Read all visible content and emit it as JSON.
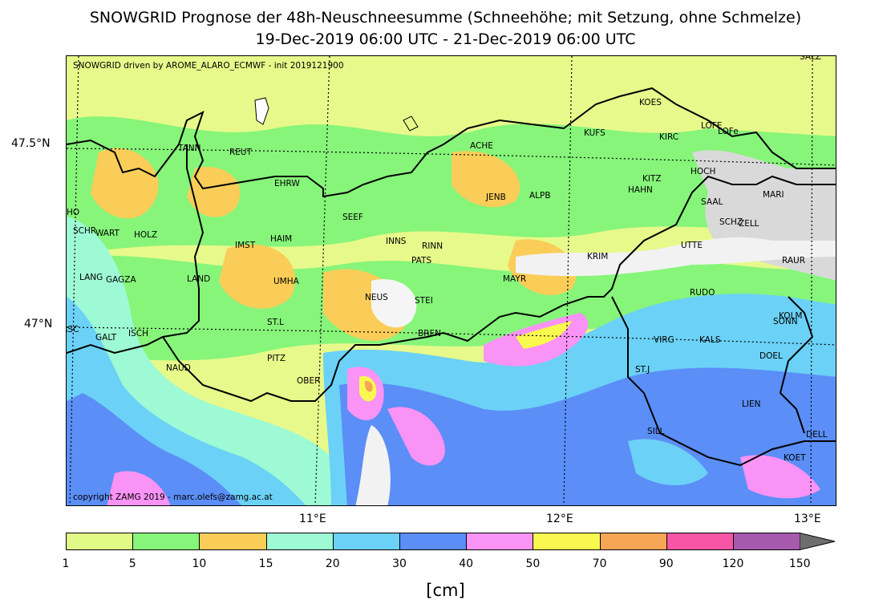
{
  "header": {
    "title_line1": "SNOWGRID Prognose der 48h-Neuschneesumme (Schneehöhe; mit Setzung, ohne Schmelze)",
    "title_line2": "19-Dec-2019 06:00 UTC - 21-Dec-2019 06:00 UTC"
  },
  "map": {
    "driven_by": "SNOWGRID driven by AROME_ALARO_ECMWF - init 2019121900",
    "copyright": "copyright ZAMG 2019 - marc.olefs@zamg.ac.at",
    "lat_labels": [
      "47.5°N",
      "47°N"
    ],
    "lon_labels": [
      "11°E",
      "12°E",
      "13°E"
    ],
    "stations": [
      {
        "name": "SALZ"
      },
      {
        "name": "KOES"
      },
      {
        "name": "LOFE"
      },
      {
        "name": "LOFe"
      },
      {
        "name": "KUFS"
      },
      {
        "name": "KIRC"
      },
      {
        "name": "ACHE"
      },
      {
        "name": "TANN"
      },
      {
        "name": "REUT"
      },
      {
        "name": "HOCH"
      },
      {
        "name": "KITZ"
      },
      {
        "name": "EHRW"
      },
      {
        "name": "HAHN"
      },
      {
        "name": "JENB"
      },
      {
        "name": "ALPB"
      },
      {
        "name": "MARI"
      },
      {
        "name": "SAAL"
      },
      {
        "name": "SCHO"
      },
      {
        "name": "SEEF"
      },
      {
        "name": "SCHZ"
      },
      {
        "name": "ZELL"
      },
      {
        "name": "SCHR"
      },
      {
        "name": "WART"
      },
      {
        "name": "HOLZ"
      },
      {
        "name": "INNS"
      },
      {
        "name": "HAIM"
      },
      {
        "name": "IMST"
      },
      {
        "name": "RINN"
      },
      {
        "name": "UTTE"
      },
      {
        "name": "KRIM"
      },
      {
        "name": "PATS"
      },
      {
        "name": "RAUR"
      },
      {
        "name": "LANG"
      },
      {
        "name": "GAGZA"
      },
      {
        "name": "LAND"
      },
      {
        "name": "UMHA"
      },
      {
        "name": "MAYR"
      },
      {
        "name": "RUDO"
      },
      {
        "name": "NEUS"
      },
      {
        "name": "STEI"
      },
      {
        "name": "KOLM"
      },
      {
        "name": "SONN"
      },
      {
        "name": "ST.L"
      },
      {
        "name": "GASC"
      },
      {
        "name": "BREN"
      },
      {
        "name": "GALT"
      },
      {
        "name": "ISCH"
      },
      {
        "name": "VIRG"
      },
      {
        "name": "KALS"
      },
      {
        "name": "PITZ"
      },
      {
        "name": "DOEL"
      },
      {
        "name": "NAUD"
      },
      {
        "name": "ST.J"
      },
      {
        "name": "OBER"
      },
      {
        "name": "LIEN"
      },
      {
        "name": "SILL"
      },
      {
        "name": "DELL"
      },
      {
        "name": "KOET"
      }
    ]
  },
  "legend": {
    "unit": "[cm]",
    "levels": [
      "1",
      "5",
      "10",
      "15",
      "20",
      "30",
      "40",
      "50",
      "70",
      "90",
      "120",
      "150"
    ],
    "colors": [
      "#e1fa87",
      "#86f57a",
      "#f9cd58",
      "#9dfad4",
      "#6bd1f6",
      "#5b8ef7",
      "#f993f5",
      "#f8f84f",
      "#f5a553",
      "#f955a7",
      "#a55aad",
      "#6e6e6e"
    ]
  }
}
